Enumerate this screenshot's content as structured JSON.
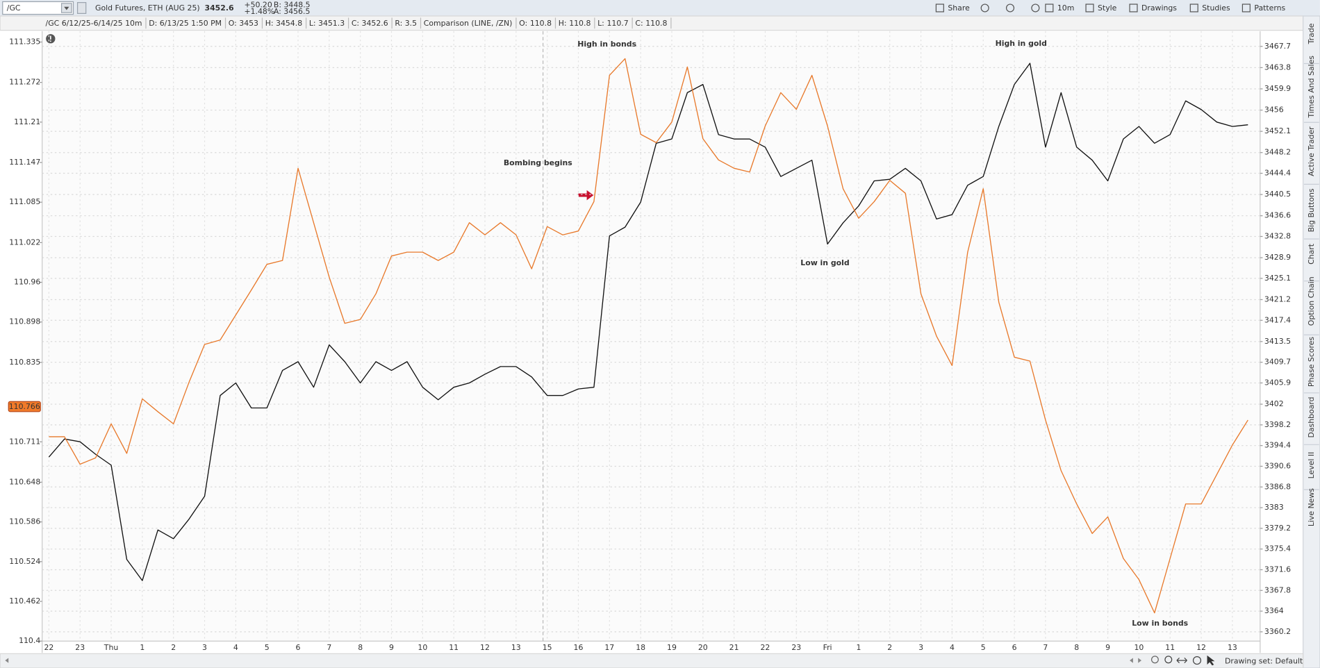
{
  "toolbar": {
    "symbol": "/GC",
    "description": "Gold Futures, ETH (AUG 25)",
    "last": "3452.6",
    "change": "+50.20",
    "change_pct": "+1.48%",
    "bid": "B: 3448.5",
    "ask": "A: 3456.5",
    "buttons": [
      "Share",
      "10m",
      "Style",
      "Drawings",
      "Studies",
      "Patterns"
    ]
  },
  "info_bar": {
    "study": "/GC 6/12/25-6/14/25 10m",
    "fields": [
      "D: 6/13/25 1:50 PM",
      "O: 3453",
      "H: 3454.8",
      "L: 3451.3",
      "C: 3452.6",
      "R: 3.5"
    ],
    "comparison": "Comparison (LINE, /ZN)",
    "comparison_fields": [
      {
        "label": "O:",
        "value": "110.8"
      },
      {
        "label": "H:",
        "value": "110.8"
      },
      {
        "label": "L:",
        "value": "110.7"
      },
      {
        "label": "C:",
        "value": "110.8"
      }
    ]
  },
  "side_tabs": [
    "Trade",
    "Times And Sales",
    "Active Trader",
    "Big Buttons",
    "Chart",
    "Option Chain",
    "Phase Scores",
    "Dashboard",
    "Level II",
    "Live News"
  ],
  "footer": {
    "drawing_set": "Drawing set: Default"
  },
  "chart_data": {
    "type": "line",
    "grid": true,
    "categories": [
      "22",
      null,
      "23",
      null,
      "Thu",
      null,
      "1",
      null,
      "2",
      null,
      "3",
      null,
      "4",
      null,
      "5",
      null,
      "6",
      null,
      "7",
      null,
      "8",
      null,
      "9",
      null,
      "10",
      null,
      "11",
      null,
      "12",
      null,
      "13",
      null,
      "15",
      null,
      "16",
      null,
      "17",
      null,
      "18",
      null,
      "19",
      null,
      "20",
      null,
      "21",
      null,
      "22",
      null,
      "23",
      null,
      "Fri",
      null,
      "1",
      null,
      "2",
      null,
      "3",
      null,
      "4",
      null,
      "5",
      null,
      "6",
      null,
      "7",
      null,
      "8",
      null,
      "9",
      null,
      "10",
      null,
      "11",
      null,
      "12",
      null,
      "13",
      null
    ],
    "series": [
      {
        "color": "#111111",
        "axis": "y2",
        "values": [
          3392.3,
          3395.6,
          3395.1,
          3392.8,
          3390.8,
          3373.5,
          3369.6,
          3378.9,
          3377.3,
          3380.9,
          3385.1,
          3403.6,
          3405.9,
          3401.3,
          3401.3,
          3408.2,
          3409.8,
          3405.1,
          3412.9,
          3409.8,
          3405.9,
          3409.8,
          3408.2,
          3409.8,
          3405.1,
          3402.8,
          3405.1,
          3405.9,
          3407.5,
          3408.9,
          3408.9,
          3407.0,
          3403.6,
          3403.6,
          3404.8,
          3405.1,
          3432.9,
          3434.5,
          3439.1,
          3449.9,
          3450.7,
          3459.2,
          3460.7,
          3451.5,
          3450.7,
          3450.7,
          3449.2,
          3443.8,
          3445.3,
          3446.8,
          3431.4,
          3435.3,
          3438.4,
          3443.0,
          3443.3,
          3445.3,
          3443.0,
          3436.0,
          3436.8,
          3442.2,
          3443.8,
          3453.0,
          3460.7,
          3464.6,
          3449.2,
          3459.2,
          3449.2,
          3446.8,
          3443.0,
          3450.7,
          3453.0,
          3449.9,
          3451.5,
          3457.7,
          3456.1,
          3453.8,
          3453.0,
          3453.3
        ]
      },
      {
        "color": "#e8792b",
        "values": [
          110.719,
          110.719,
          110.676,
          110.686,
          110.739,
          110.693,
          110.778,
          110.758,
          110.739,
          110.804,
          110.863,
          110.87,
          110.909,
          110.948,
          110.988,
          110.994,
          111.138,
          111.053,
          110.968,
          110.896,
          110.902,
          110.942,
          111.001,
          111.007,
          111.007,
          110.994,
          111.007,
          111.053,
          111.034,
          111.053,
          111.034,
          110.981,
          111.047,
          111.034,
          111.04,
          111.086,
          111.283,
          111.309,
          111.191,
          111.178,
          111.21,
          111.296,
          111.184,
          111.151,
          111.138,
          111.132,
          111.204,
          111.256,
          111.23,
          111.283,
          111.204,
          111.106,
          111.06,
          111.086,
          111.119,
          111.099,
          110.942,
          110.876,
          110.83,
          111.007,
          111.106,
          110.929,
          110.843,
          110.837,
          110.745,
          110.666,
          110.614,
          110.568,
          110.594,
          110.529,
          110.496,
          110.444,
          110.529,
          110.614,
          110.614,
          110.66,
          110.706,
          110.745
        ]
      }
    ],
    "ylim": [
      110.4,
      111.352
    ],
    "yticks": [
      111.335,
      111.272,
      111.21,
      111.147,
      111.085,
      111.022,
      110.96,
      110.898,
      110.835,
      110.711,
      110.648,
      110.586,
      110.524,
      110.462,
      110.4
    ],
    "y2lim": [
      3358.5,
      3470.5
    ],
    "y2ticks": [
      3467.7,
      3463.8,
      3459.9,
      3456,
      3452.1,
      3448.2,
      3444.4,
      3440.5,
      3436.6,
      3432.8,
      3428.9,
      3425.1,
      3421.2,
      3417.4,
      3413.5,
      3409.7,
      3405.9,
      3402,
      3398.2,
      3394.4,
      3390.6,
      3386.8,
      3383,
      3379.2,
      3375.4,
      3371.6,
      3367.8,
      3364,
      3360.2
    ],
    "last_value": 110.766,
    "annotations": [
      {
        "text": "High in bonds",
        "color": "#e8792b"
      },
      {
        "text": "Bombing begins",
        "color": "#c8102e"
      },
      {
        "text": "High in gold",
        "color": "#111111"
      },
      {
        "text": "Low in gold",
        "color": "#111111"
      },
      {
        "text": "Low in bonds",
        "color": "#e8792b"
      }
    ]
  }
}
